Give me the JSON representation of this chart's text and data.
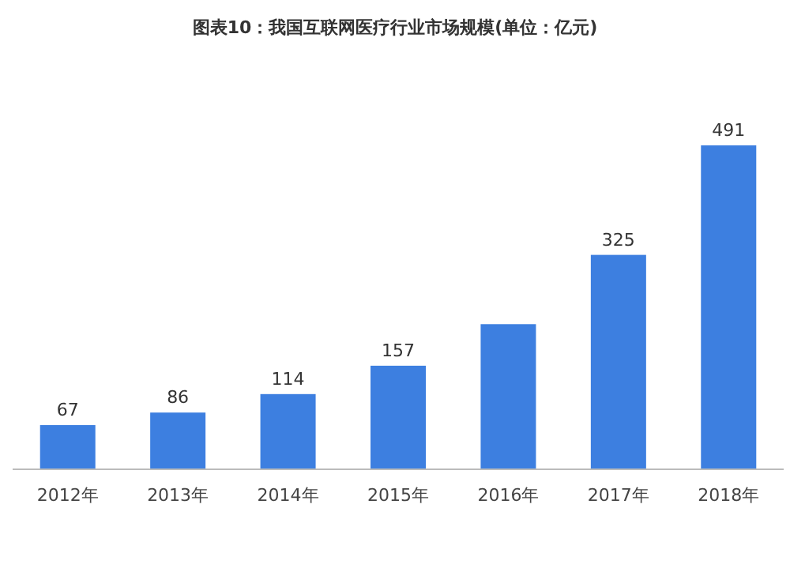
{
  "chart_data": {
    "type": "bar",
    "title": "图表10：我国互联网医疗行业市场规模(单位：亿元)",
    "categories": [
      "2012年",
      "2013年",
      "2014年",
      "2015年",
      "2016年",
      "2017年",
      "2018年"
    ],
    "values": [
      67,
      86,
      114,
      157,
      220,
      325,
      491
    ],
    "color": "#3d7fe0",
    "value_labels": [
      "67",
      "86",
      "114",
      "157",
      null,
      "325",
      "491"
    ]
  }
}
